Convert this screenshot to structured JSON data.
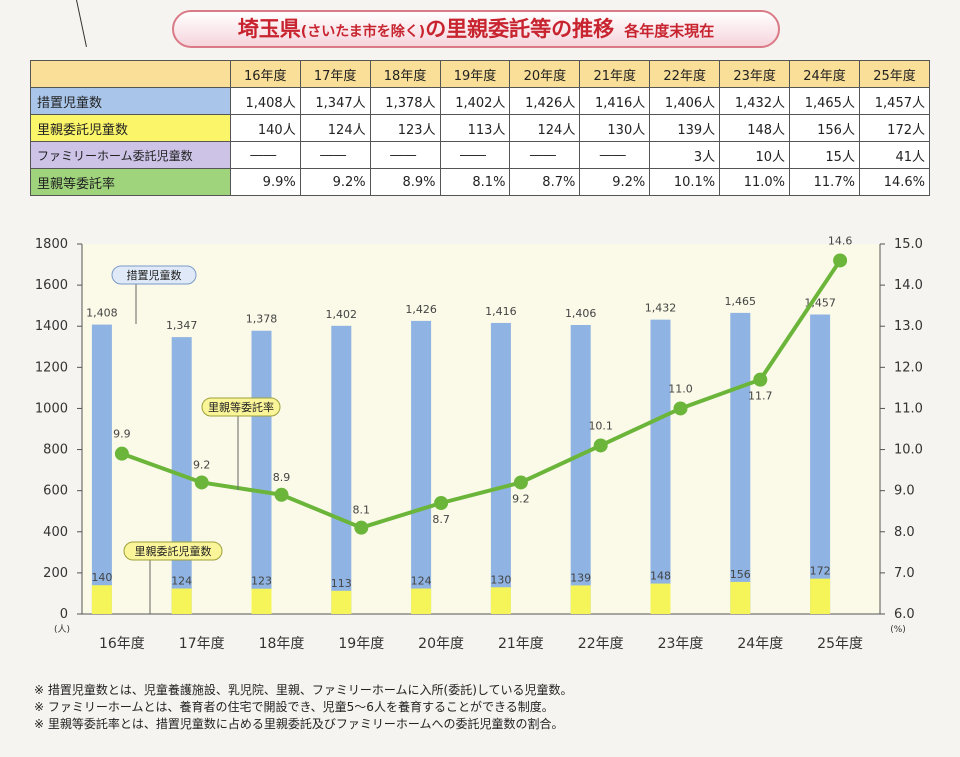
{
  "header": {
    "title_a": "埼玉県",
    "title_b": "(さいたま市を除く)",
    "title_c": "の里親委託等の推移",
    "as_of": "各年度末現在"
  },
  "table": {
    "columns": [
      "16年度",
      "17年度",
      "18年度",
      "19年度",
      "20年度",
      "21年度",
      "22年度",
      "23年度",
      "24年度",
      "25年度"
    ],
    "rows": [
      {
        "label": "措置児童数",
        "values": [
          "1,408人",
          "1,347人",
          "1,378人",
          "1,402人",
          "1,426人",
          "1,416人",
          "1,406人",
          "1,432人",
          "1,465人",
          "1,457人"
        ]
      },
      {
        "label": "里親委託児童数",
        "values": [
          "140人",
          "124人",
          "123人",
          "113人",
          "124人",
          "130人",
          "139人",
          "148人",
          "156人",
          "172人"
        ]
      },
      {
        "label": "ファミリーホーム委託児童数",
        "values": [
          "――",
          "――",
          "――",
          "――",
          "――",
          "――",
          "3人",
          "10人",
          "15人",
          "41人"
        ]
      },
      {
        "label": "里親等委託率",
        "values": [
          "9.9%",
          "9.2%",
          "8.9%",
          "8.1%",
          "8.7%",
          "9.2%",
          "10.1%",
          "11.0%",
          "11.7%",
          "14.6%"
        ]
      }
    ]
  },
  "chart_data": {
    "type": "bar",
    "categories": [
      "16年度",
      "17年度",
      "18年度",
      "19年度",
      "20年度",
      "21年度",
      "22年度",
      "23年度",
      "24年度",
      "25年度"
    ],
    "series": [
      {
        "name": "措置児童数",
        "kind": "bar",
        "axis": "left",
        "color": "#8fb4e3",
        "values": [
          1408,
          1347,
          1378,
          1402,
          1426,
          1416,
          1406,
          1432,
          1465,
          1457
        ],
        "labels": [
          "1,408",
          "1,347",
          "1,378",
          "1,402",
          "1,426",
          "1,416",
          "1,406",
          "1,432",
          "1,465",
          "1,457"
        ]
      },
      {
        "name": "里親委託児童数",
        "kind": "bar",
        "axis": "left",
        "color": "#f5f55a",
        "values": [
          140,
          124,
          123,
          113,
          124,
          130,
          139,
          148,
          156,
          172
        ],
        "labels": [
          "140",
          "124",
          "123",
          "113",
          "124",
          "130",
          "139",
          "148",
          "156",
          "172"
        ]
      },
      {
        "name": "里親等委託率",
        "kind": "line",
        "axis": "right",
        "color": "#6bb63a",
        "values": [
          9.9,
          9.2,
          8.9,
          8.1,
          8.7,
          9.2,
          10.1,
          11.0,
          11.7,
          14.6
        ],
        "labels": [
          "9.9",
          "9.2",
          "8.9",
          "8.1",
          "8.7",
          "9.2",
          "10.1",
          "11.0",
          "11.7",
          "14.6"
        ]
      }
    ],
    "y_left": {
      "min": 0,
      "max": 1800,
      "ticks": [
        "0",
        "200",
        "400",
        "600",
        "800",
        "1000",
        "1200",
        "1400",
        "1600",
        "1800"
      ],
      "unit": "(人)"
    },
    "y_right": {
      "min": 6.0,
      "max": 15.0,
      "ticks": [
        "6.0",
        "7.0",
        "8.0",
        "9.0",
        "10.0",
        "11.0",
        "12.0",
        "13.0",
        "14.0",
        "15.0"
      ],
      "unit": "(%)"
    },
    "grid": false
  },
  "notes": [
    "※ 措置児童数とは、児童養護施設、乳児院、里親、ファミリーホームに入所(委託)している児童数。",
    "※ ファミリーホームとは、養育者の住宅で開設でき、児童5～6人を養育することができる制度。",
    "※ 里親等委託率とは、措置児童数に占める里親委託及びファミリーホームへの委託児童数の割合。"
  ]
}
